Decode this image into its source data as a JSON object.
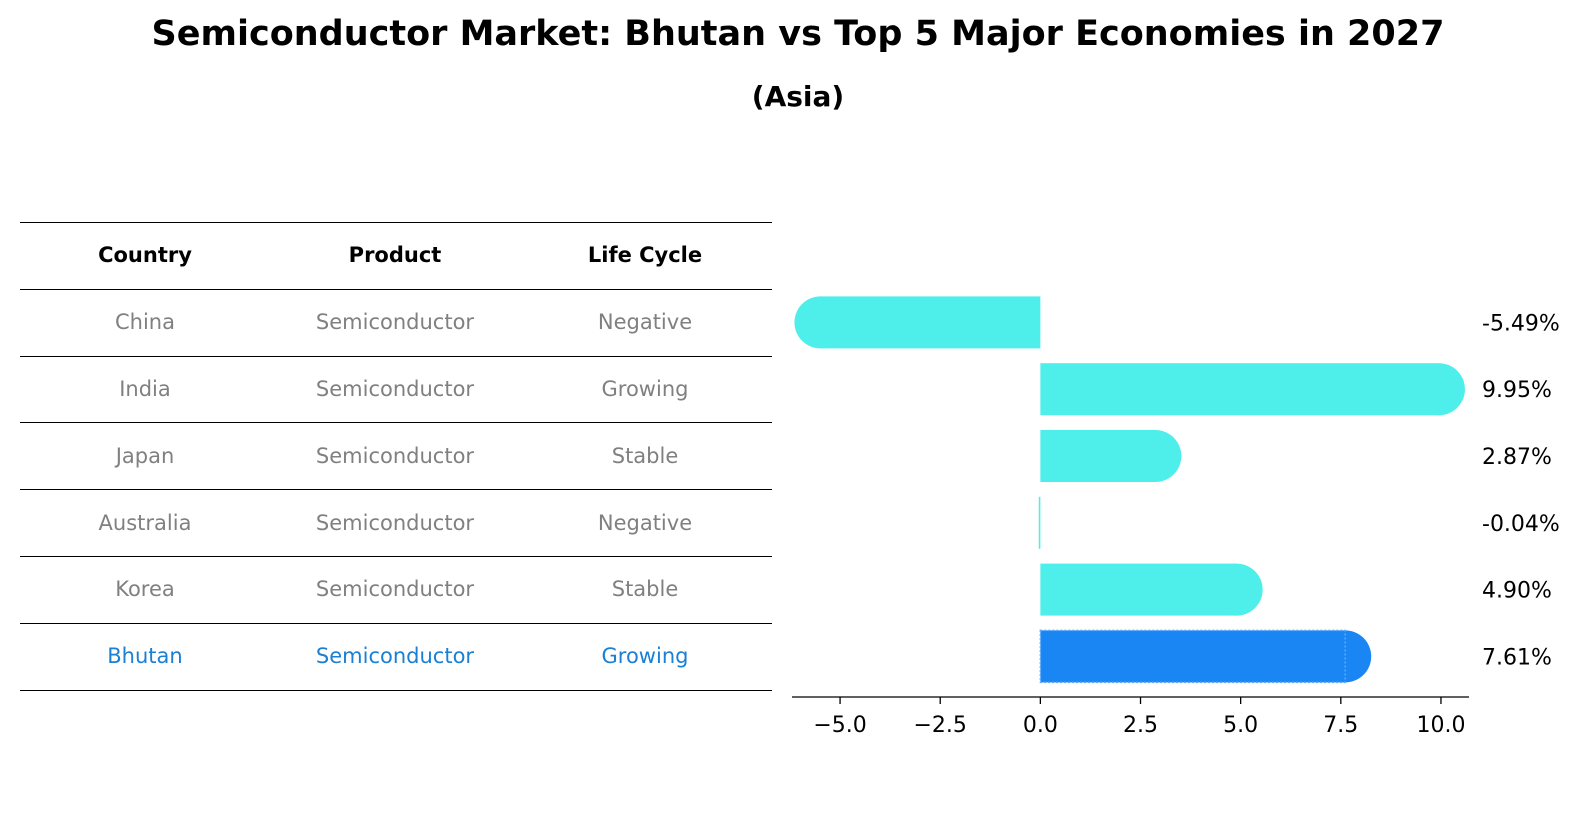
{
  "title": "Semiconductor Market: Bhutan vs Top 5 Major Economies in 2027",
  "subtitle": "(Asia)",
  "table": {
    "headers": [
      "Country",
      "Product",
      "Life Cycle"
    ],
    "rows": [
      {
        "country": "China",
        "product": "Semiconductor",
        "life_cycle": "Negative",
        "highlight": false
      },
      {
        "country": "India",
        "product": "Semiconductor",
        "life_cycle": "Growing",
        "highlight": false
      },
      {
        "country": "Japan",
        "product": "Semiconductor",
        "life_cycle": "Stable",
        "highlight": false
      },
      {
        "country": "Australia",
        "product": "Semiconductor",
        "life_cycle": "Negative",
        "highlight": false
      },
      {
        "country": "Korea",
        "product": "Semiconductor",
        "life_cycle": "Stable",
        "highlight": false
      },
      {
        "country": "Bhutan",
        "product": "Semiconductor",
        "life_cycle": "Growing",
        "highlight": true
      }
    ]
  },
  "colors": {
    "bar": "#4eeeea",
    "highlight_bar": "#1a86f4",
    "highlight_text": "#1a80d6",
    "row_text": "#808080"
  },
  "chart_data": {
    "type": "bar",
    "orientation": "horizontal",
    "categories": [
      "China",
      "India",
      "Japan",
      "Australia",
      "Korea",
      "Bhutan"
    ],
    "values": [
      -5.49,
      9.95,
      2.87,
      -0.04,
      4.9,
      7.61
    ],
    "value_labels": [
      "-5.49%",
      "9.95%",
      "2.87%",
      "-0.04%",
      "4.90%",
      "7.61%"
    ],
    "highlight_category": "Bhutan",
    "xlim": [
      -6.2,
      10.7
    ],
    "xticks": [
      -5.0,
      -2.5,
      0.0,
      2.5,
      5.0,
      7.5,
      10.0
    ],
    "xtick_labels": [
      "−5.0",
      "−2.5",
      "0.0",
      "2.5",
      "5.0",
      "7.5",
      "10.0"
    ],
    "xlabel": "",
    "ylabel": "",
    "grid": false
  }
}
